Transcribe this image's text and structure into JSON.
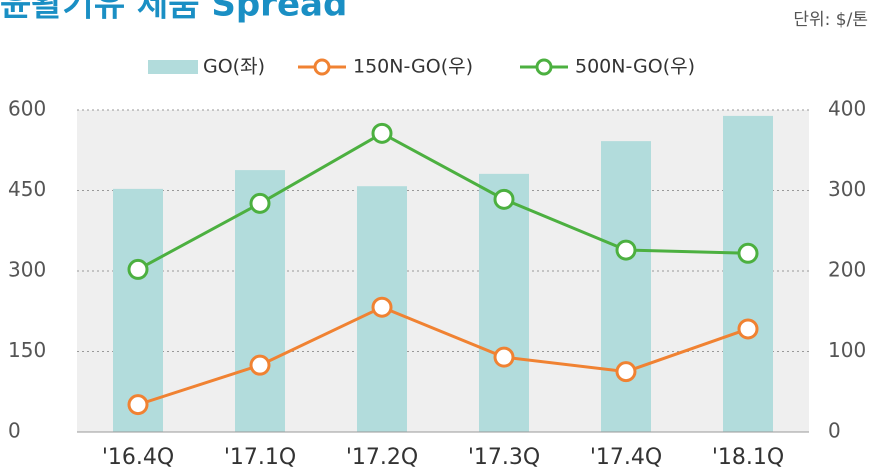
{
  "chart_data": {
    "type": "bar_line",
    "title": "윤활기유 제품 Spread",
    "unit": "단위: $/톤",
    "categories": [
      "'16.4Q",
      "'17.1Q",
      "'17.2Q",
      "'17.3Q",
      "'17.4Q",
      "'18.1Q"
    ],
    "series": [
      {
        "name": "GO(좌)",
        "color": "#b2dcdc",
        "type": "bar",
        "values": [
          453,
          488,
          458,
          481,
          542,
          589
        ]
      },
      {
        "name": "150N-GO(우)",
        "color": "#f08232",
        "type": "line",
        "axis": "y2",
        "values": [
          34,
          83,
          155,
          93,
          75,
          128
        ]
      },
      {
        "name": "500N-GO(우)",
        "color": "#4cb040",
        "type": "line",
        "axis": "y2",
        "values": [
          202,
          284,
          371,
          289,
          226,
          222
        ]
      }
    ],
    "ylim": [
      0,
      600
    ],
    "yticks": [
      0,
      150,
      300,
      450,
      600
    ],
    "y2lim": [
      0,
      400
    ],
    "y2ticks": [
      0,
      100,
      200,
      300,
      400
    ],
    "grid": true
  }
}
